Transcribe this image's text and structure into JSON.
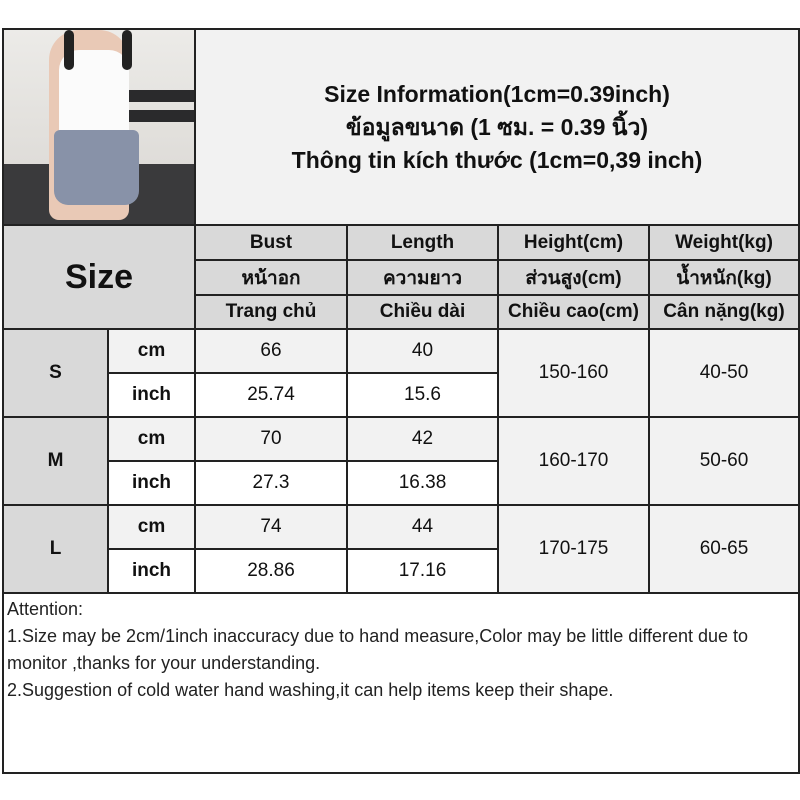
{
  "title": {
    "line1": "Size Information(1cm=0.39inch)",
    "line2": "ข้อมูลขนาด (1 ซม. = 0.39 นิ้ว)",
    "line3": "Thông tin kích thước (1cm=0,39 inch)"
  },
  "photo": {
    "alt": "model wearing white tank top and grey shorts"
  },
  "header": {
    "size_label": "Size",
    "columns": [
      {
        "en": "Bust",
        "th": "หน้าอก",
        "vi": "Trang chủ"
      },
      {
        "en": "Length",
        "th": "ความยาว",
        "vi": "Chiều dài"
      },
      {
        "en": "Height(cm)",
        "th": "ส่วนสูง(cm)",
        "vi": "Chiều cao(cm)"
      },
      {
        "en": "Weight(kg)",
        "th": "น้ำหนัก(kg)",
        "vi": "Cân nặng(kg)"
      }
    ]
  },
  "rows": [
    {
      "size": "S",
      "unit_cm": "cm",
      "unit_inch": "inch",
      "bust_cm": "66",
      "length_cm": "40",
      "bust_inch": "25.74",
      "length_inch": "15.6",
      "height": "150-160",
      "weight": "40-50"
    },
    {
      "size": "M",
      "unit_cm": "cm",
      "unit_inch": "inch",
      "bust_cm": "70",
      "length_cm": "42",
      "bust_inch": "27.3",
      "length_inch": "16.38",
      "height": "160-170",
      "weight": "50-60"
    },
    {
      "size": "L",
      "unit_cm": "cm",
      "unit_inch": "inch",
      "bust_cm": "74",
      "length_cm": "44",
      "bust_inch": "28.86",
      "length_inch": "17.16",
      "height": "170-175",
      "weight": "60-65"
    }
  ],
  "attention": {
    "heading": "Attention:",
    "note1": "1.Size may be 2cm/1inch inaccuracy due to hand measure,Color may be little different due to monitor ,thanks for your understanding.",
    "note2": "2.Suggestion of cold water hand washing,it can help items keep their shape."
  }
}
